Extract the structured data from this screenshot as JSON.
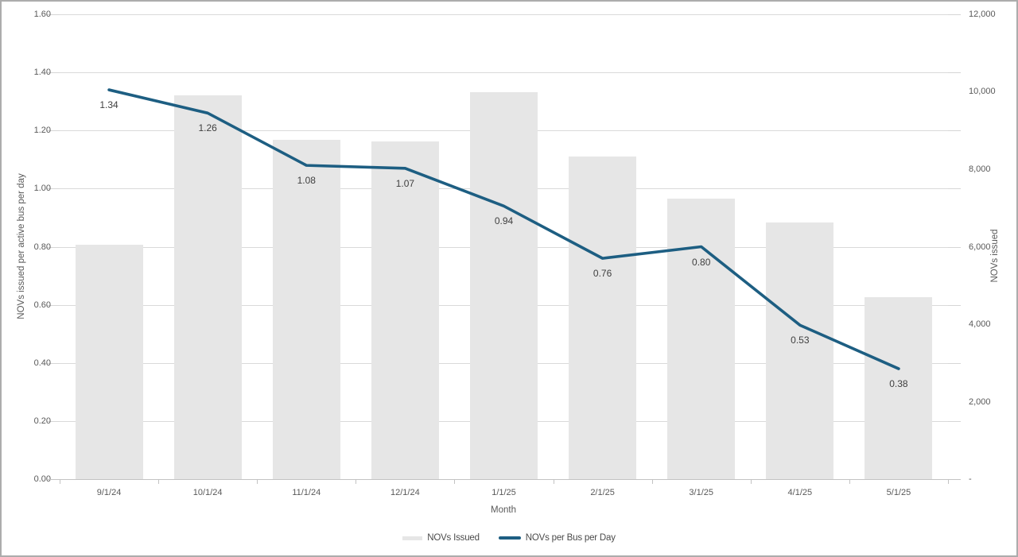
{
  "window": {
    "title": "NOVs chart"
  },
  "colors": {
    "bar_fill": "#e6e6e6",
    "line_stroke": "#1d5e82",
    "gridline": "#dadada",
    "axis_line": "#c3c3c3",
    "axis_text": "#595959",
    "data_label_text": "#3f3f3f"
  },
  "chart_data": {
    "type": "combo",
    "title": "",
    "categories": [
      "9/1/24",
      "10/1/24",
      "11/1/24",
      "12/1/24",
      "1/1/25",
      "2/1/25",
      "3/1/25",
      "4/1/25",
      "5/1/25"
    ],
    "series": [
      {
        "name": "NOVs Issued",
        "type": "bar",
        "axis": "right",
        "values": [
          6060,
          9900,
          8750,
          8720,
          9990,
          8320,
          7240,
          6630,
          4690
        ]
      },
      {
        "name": "NOVs per Bus per Day",
        "type": "line",
        "axis": "left",
        "values": [
          1.34,
          1.26,
          1.08,
          1.07,
          0.94,
          0.76,
          0.8,
          0.53,
          0.38
        ],
        "data_labels": [
          "1.34",
          "1.26",
          "1.08",
          "1.07",
          "0.94",
          "0.76",
          "0.80",
          "0.53",
          "0.38"
        ]
      }
    ],
    "left_axis": {
      "title": "NOVs issued per active bus per day",
      "min": 0,
      "max": 1.6,
      "step": 0.2,
      "tick_labels": [
        "0.00",
        "0.20",
        "0.40",
        "0.60",
        "0.80",
        "1.00",
        "1.20",
        "1.40",
        "1.60"
      ]
    },
    "right_axis": {
      "title": "NOVs issued",
      "min": 0,
      "max": 12000,
      "step": 2000,
      "tick_labels": [
        "-",
        "2,000",
        "4,000",
        "6,000",
        "8,000",
        "10,000",
        "12,000"
      ]
    },
    "x_axis": {
      "title": "Month"
    },
    "legend": {
      "position": "bottom",
      "items": [
        {
          "label": "NOVs Issued",
          "swatch": "bar"
        },
        {
          "label": "NOVs per Bus per Day",
          "swatch": "line"
        }
      ]
    },
    "grid": true
  }
}
